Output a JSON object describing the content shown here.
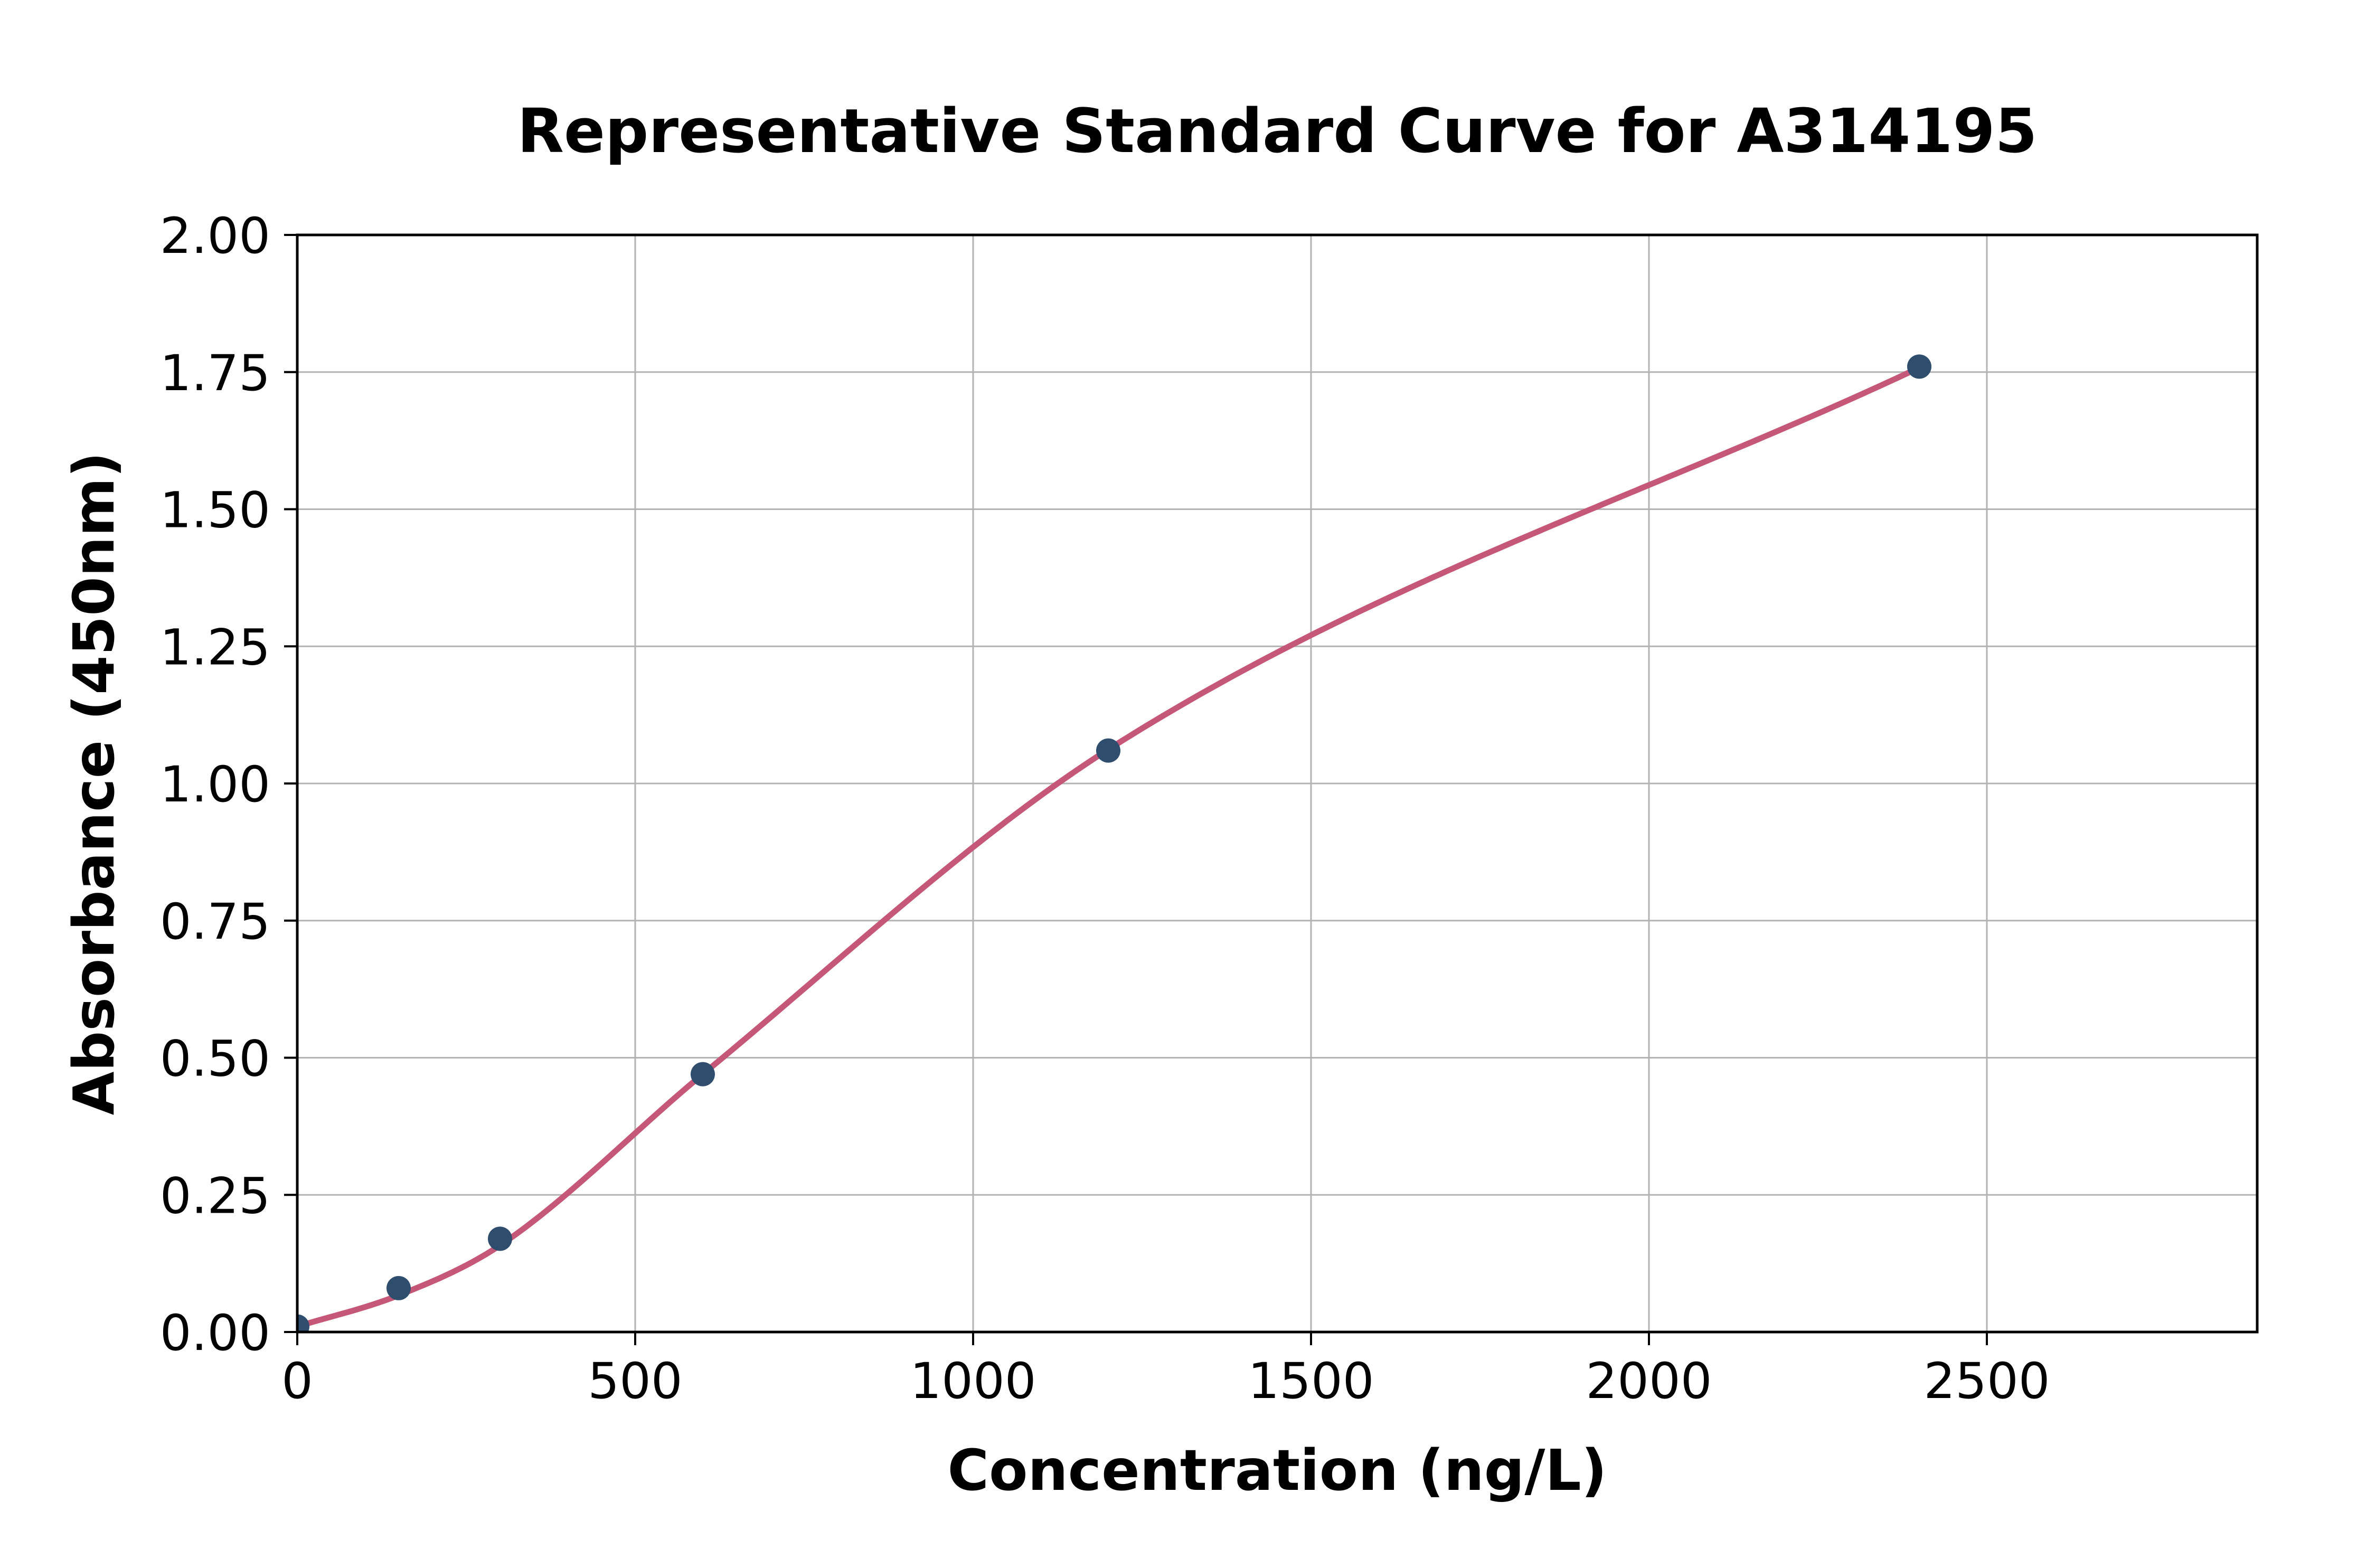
{
  "page": {
    "background": "#FFFFFF"
  },
  "chart_data": {
    "type": "scatter",
    "title": "Representative Standard Curve for A314195",
    "xlabel": "Concentration (ng/L)",
    "ylabel": "Absorbance (450nm)",
    "x": [
      0,
      150,
      300,
      600,
      1200,
      2400
    ],
    "y": [
      0.01,
      0.08,
      0.17,
      0.47,
      1.06,
      1.76
    ],
    "fit_curve_points": [
      [
        0,
        0.01
      ],
      [
        150,
        0.067
      ],
      [
        300,
        0.158
      ],
      [
        600,
        0.47
      ],
      [
        1200,
        1.062
      ],
      [
        2400,
        1.758
      ]
    ],
    "xlim": [
      0,
      2900
    ],
    "ylim": [
      0,
      2.0
    ],
    "xticks": [
      0,
      500,
      1000,
      1500,
      2000,
      2500
    ],
    "yticks": [
      0,
      0.25,
      0.5,
      0.75,
      1.0,
      1.25,
      1.5,
      1.75,
      2.0
    ],
    "ytick_decimals": 2,
    "grid": true,
    "legend": null,
    "colors": {
      "curve": "#C55878",
      "points": "#2F4E6D",
      "grid": "#B3B3B3",
      "axes": "#000000",
      "text": "#000000",
      "background": "#FFFFFF"
    }
  }
}
